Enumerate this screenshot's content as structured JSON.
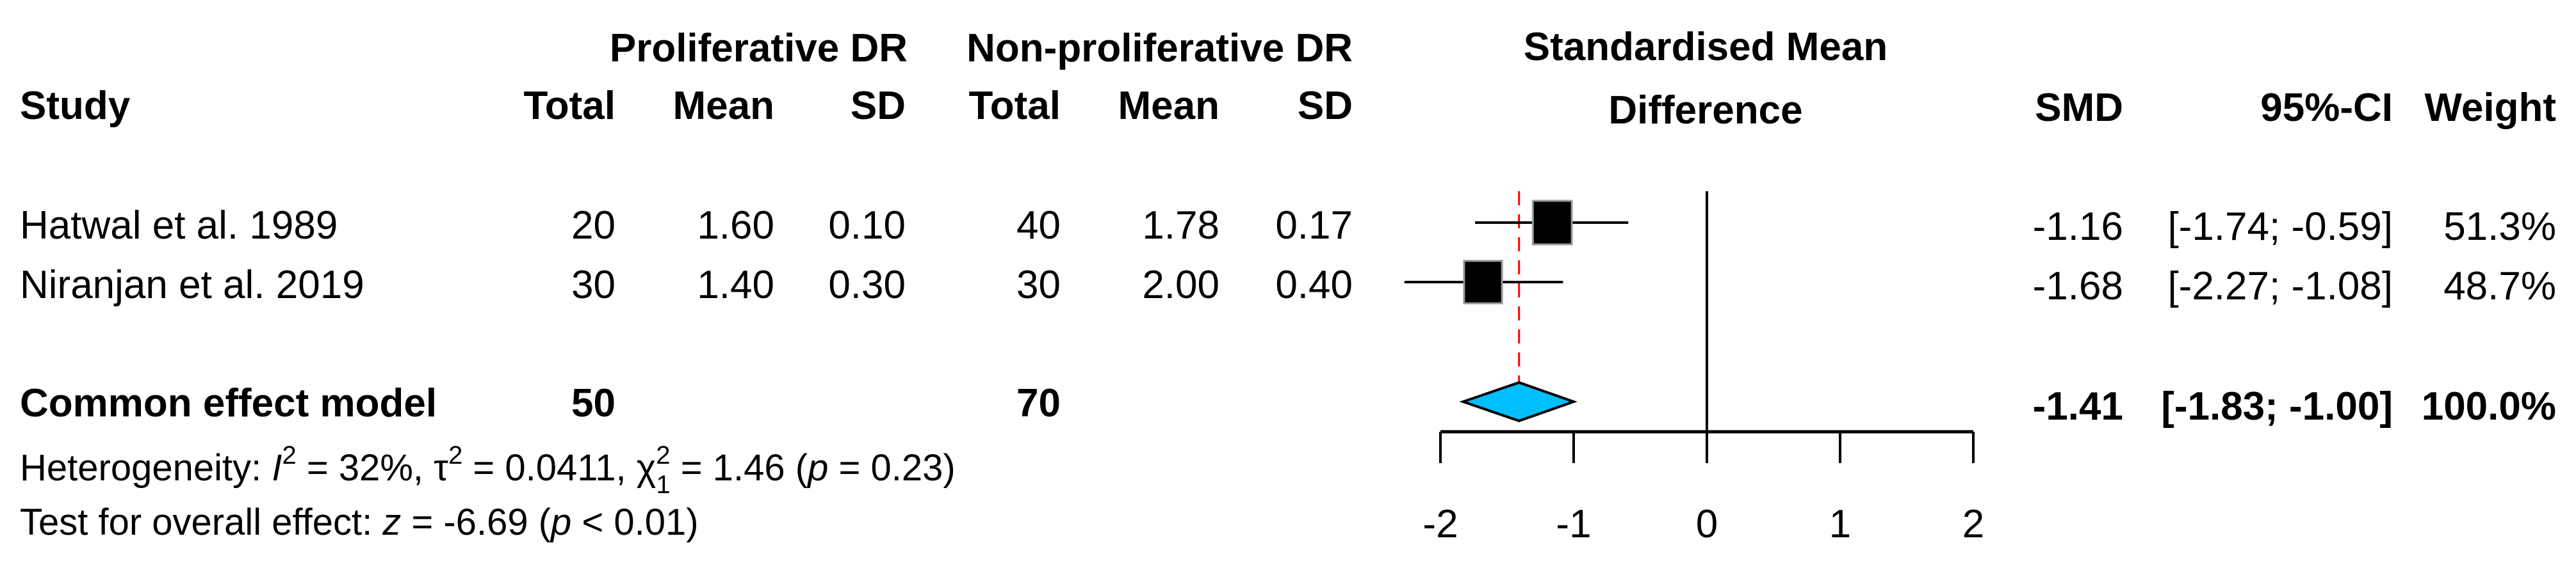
{
  "chart_data": {
    "type": "forest",
    "title": "Standardised Mean Difference",
    "headers": {
      "group1": "Proliferative DR",
      "group2": "Non-proliferative DR",
      "study": "Study",
      "total": "Total",
      "mean": "Mean",
      "sd": "SD",
      "plot_line1": "Standardised Mean",
      "plot_line2": "Difference",
      "smd": "SMD",
      "ci": "95%-CI",
      "weight": "Weight"
    },
    "studies": [
      {
        "name": "Hatwal et al. 1989",
        "total1": "20",
        "mean1": "1.60",
        "sd1": "0.10",
        "total2": "40",
        "mean2": "1.78",
        "sd2": "0.17",
        "smd_text": "-1.16",
        "ci_text": "[-1.74; -0.59]",
        "weight_text": "51.3%",
        "smd": -1.16,
        "lower": -1.74,
        "upper": -0.59,
        "weight": 51.3
      },
      {
        "name": "Niranjan et al. 2019",
        "total1": "30",
        "mean1": "1.40",
        "sd1": "0.30",
        "total2": "30",
        "mean2": "2.00",
        "sd2": "0.40",
        "smd_text": "-1.68",
        "ci_text": "[-2.27; -1.08]",
        "weight_text": "48.7%",
        "smd": -1.68,
        "lower": -2.27,
        "upper": -1.08,
        "weight": 48.7
      }
    ],
    "pooled": {
      "name": "Common effect model",
      "total1": "50",
      "total2": "70",
      "smd_text": "-1.41",
      "ci_text": "[-1.83; -1.00]",
      "weight_text": "100.0%",
      "smd": -1.41,
      "lower": -1.83,
      "upper": -1.0
    },
    "heterogeneity": {
      "label": "Heterogeneity: ",
      "i": "I",
      "i_sup": "2",
      "i_val": " = 32%, ",
      "tau": "τ",
      "tau_sup": "2",
      "tau_val": " = 0.0411, ",
      "chi": "χ",
      "chi_sup": "2",
      "chi_sub": "1",
      "chi_val": " = 1.46 (",
      "p": "p",
      "p_val": " = 0.23)"
    },
    "overall": {
      "label": "Test for overall effect: ",
      "z": "z",
      "z_val": " = -6.69 (",
      "p": "p",
      "p_val": " < 0.01)"
    },
    "xlim": [
      -2,
      2
    ],
    "xticks": [
      "-2",
      "-1",
      "0",
      "1",
      "2"
    ],
    "null_line": 0,
    "colors": {
      "box": "#000000",
      "diamond": "#00BFFF",
      "pooled_line": "#FF0000"
    }
  }
}
